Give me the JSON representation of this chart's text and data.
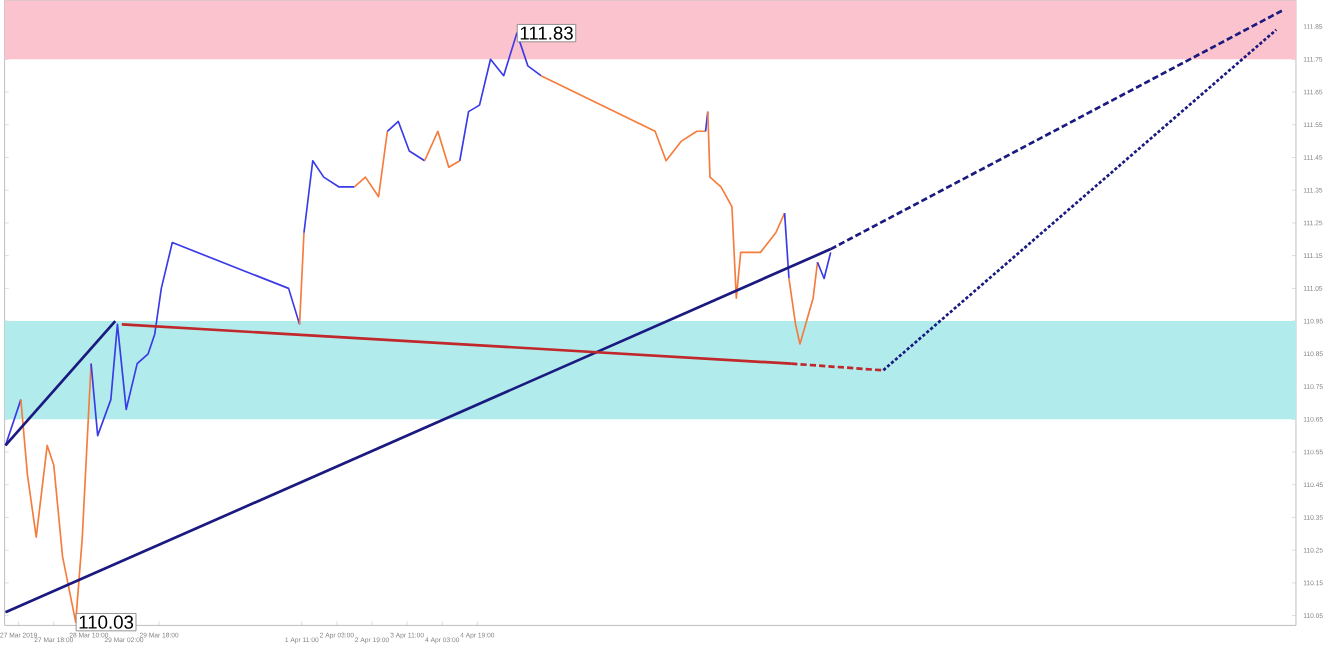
{
  "chart_data": {
    "type": "line",
    "xlim": [
      "2019-03-26T19:36",
      "2019-04-20T08:00"
    ],
    "ylim": [
      110.02,
      111.93
    ],
    "xticks": [
      {
        "value": "2019-03-27T02:00",
        "label": "27 Mar 2019"
      },
      {
        "value": "2019-03-27T18:00",
        "label": "27 Mar 18:00"
      },
      {
        "value": "2019-03-28T10:00",
        "label": "28 Mar 10:00"
      },
      {
        "value": "2019-03-29T02:00",
        "label": "29 Mar 02:00"
      },
      {
        "value": "2019-03-29T18:00",
        "label": "29 Mar 18:00"
      },
      {
        "value": "2019-04-01T11:00",
        "label": "1 Apr 11:00"
      },
      {
        "value": "2019-04-02T03:00",
        "label": "2 Apr 03:00"
      },
      {
        "value": "2019-04-02T19:00",
        "label": "2 Apr 19:00"
      },
      {
        "value": "2019-04-03T11:00",
        "label": "3 Apr 11:00"
      },
      {
        "value": "2019-04-04T03:00",
        "label": "4 Apr 03:00"
      },
      {
        "value": "2019-04-04T19:00",
        "label": "4 Apr 19:00"
      }
    ],
    "yticks": [
      110.05,
      110.15,
      110.25,
      110.35,
      110.45,
      110.55,
      110.65,
      110.75,
      110.85,
      110.95,
      111.05,
      111.15,
      111.25,
      111.35,
      111.45,
      111.55,
      111.65,
      111.75,
      111.85
    ],
    "bands": [
      {
        "axis": "y",
        "from": 111.75,
        "to": 111.93,
        "color": "#fbc3cd"
      },
      {
        "axis": "y",
        "from": 110.65,
        "to": 110.95,
        "color": "#b1ebeb"
      }
    ],
    "annotations": [
      {
        "text": "111.83",
        "x": "2019-04-05T13:00",
        "y": 111.83
      },
      {
        "text": "110.03",
        "x": "2019-03-28T04:00",
        "y": 110.03
      }
    ],
    "series": [
      {
        "color": "#3a3ae8",
        "x": [
          "2019-03-26T20:00",
          "2019-03-27T03:00"
        ],
        "values": [
          110.57,
          110.71
        ]
      },
      {
        "color": "#f57c3c",
        "x": [
          "2019-03-27T03:00",
          "2019-03-27T06:00",
          "2019-03-27T10:00",
          "2019-03-27T15:00",
          "2019-03-27T18:00",
          "2019-03-27T22:00",
          "2019-03-28T04:00",
          "2019-03-28T07:00",
          "2019-03-28T11:00"
        ],
        "values": [
          110.71,
          110.48,
          110.29,
          110.57,
          110.51,
          110.23,
          110.03,
          110.29,
          110.82
        ]
      },
      {
        "color": "#3a3ae8",
        "x": [
          "2019-03-28T11:00",
          "2019-03-28T14:00",
          "2019-03-28T20:00",
          "2019-03-28T23:00",
          "2019-03-29T03:00",
          "2019-03-29T08:00",
          "2019-03-29T13:00",
          "2019-03-29T16:00",
          "2019-03-29T19:00",
          "2019-03-30T00:00",
          "2019-04-01T05:00",
          "2019-04-01T10:00"
        ],
        "values": [
          110.82,
          110.6,
          110.71,
          110.94,
          110.68,
          110.82,
          110.85,
          110.91,
          111.05,
          111.19,
          111.05,
          110.94
        ]
      },
      {
        "color": "#f57c3c",
        "x": [
          "2019-04-01T10:00",
          "2019-04-01T12:00"
        ],
        "values": [
          110.94,
          111.22
        ]
      },
      {
        "color": "#3a3ae8",
        "x": [
          "2019-04-01T12:00",
          "2019-04-01T16:00",
          "2019-04-01T21:00",
          "2019-04-02T04:00",
          "2019-04-02T11:00"
        ],
        "values": [
          111.22,
          111.44,
          111.39,
          111.36,
          111.36
        ]
      },
      {
        "color": "#f57c3c",
        "x": [
          "2019-04-02T11:00",
          "2019-04-02T16:00",
          "2019-04-02T22:00",
          "2019-04-03T02:00"
        ],
        "values": [
          111.36,
          111.39,
          111.33,
          111.53
        ]
      },
      {
        "color": "#3a3ae8",
        "x": [
          "2019-04-03T02:00",
          "2019-04-03T07:00",
          "2019-04-03T12:00",
          "2019-04-03T19:00"
        ],
        "values": [
          111.53,
          111.56,
          111.47,
          111.44
        ]
      },
      {
        "color": "#f57c3c",
        "x": [
          "2019-04-03T19:00",
          "2019-04-04T01:00",
          "2019-04-04T06:00",
          "2019-04-04T11:00"
        ],
        "values": [
          111.44,
          111.53,
          111.42,
          111.44
        ]
      },
      {
        "color": "#3a3ae8",
        "x": [
          "2019-04-04T11:00",
          "2019-04-04T15:00",
          "2019-04-04T20:00",
          "2019-04-05T01:00",
          "2019-04-05T07:00",
          "2019-04-05T13:00",
          "2019-04-05T18:00",
          "2019-04-06T00:00"
        ],
        "values": [
          111.44,
          111.59,
          111.61,
          111.75,
          111.7,
          111.83,
          111.73,
          111.7
        ]
      },
      {
        "color": "#f57c3c",
        "x": [
          "2019-04-06T00:00",
          "2019-04-08T04:00",
          "2019-04-08T09:00",
          "2019-04-08T16:00",
          "2019-04-08T23:00",
          "2019-04-09T03:00"
        ],
        "values": [
          111.7,
          111.53,
          111.44,
          111.5,
          111.53,
          111.53
        ]
      },
      {
        "color": "#3a3ae8",
        "x": [
          "2019-04-09T03:00",
          "2019-04-09T04:00"
        ],
        "values": [
          111.53,
          111.59
        ]
      },
      {
        "color": "#f57c3c",
        "x": [
          "2019-04-09T04:00",
          "2019-04-09T05:00",
          "2019-04-09T10:00",
          "2019-04-09T15:00",
          "2019-04-09T17:00",
          "2019-04-09T19:00",
          "2019-04-10T04:00",
          "2019-04-10T11:00",
          "2019-04-10T15:00"
        ],
        "values": [
          111.59,
          111.39,
          111.36,
          111.3,
          111.02,
          111.16,
          111.16,
          111.22,
          111.28
        ]
      },
      {
        "color": "#3a3ae8",
        "x": [
          "2019-04-10T15:00",
          "2019-04-10T17:00"
        ],
        "values": [
          111.28,
          111.08
        ]
      },
      {
        "color": "#f57c3c",
        "x": [
          "2019-04-10T17:00",
          "2019-04-10T20:00",
          "2019-04-10T22:00",
          "2019-04-11T04:00",
          "2019-04-11T06:00"
        ],
        "values": [
          111.08,
          110.94,
          110.88,
          111.02,
          111.13
        ]
      },
      {
        "color": "#3a3ae8",
        "x": [
          "2019-04-11T06:00",
          "2019-04-11T09:00",
          "2019-04-11T12:00"
        ],
        "values": [
          111.13,
          111.08,
          111.16
        ]
      },
      {
        "color": "#1a1a80",
        "line_style": "solid",
        "x": [
          "2019-03-26T20:00",
          "2019-04-11T12:00"
        ],
        "values": [
          110.06,
          111.17
        ]
      },
      {
        "color": "#1a1a80",
        "line_style": "dashed",
        "x": [
          "2019-04-11T12:00",
          "2019-04-20T02:00"
        ],
        "values": [
          111.17,
          111.9
        ]
      },
      {
        "color": "#1a1a80",
        "line_style": "solid",
        "x": [
          "2019-03-26T20:00",
          "2019-03-28T22:00"
        ],
        "values": [
          110.57,
          110.95
        ]
      },
      {
        "color": "#c0282c",
        "line_style": "solid",
        "x": [
          "2019-03-29T01:00",
          "2019-04-10T18:00"
        ],
        "values": [
          110.94,
          110.82
        ]
      },
      {
        "color": "#c0282c",
        "line_style": "dashed",
        "x": [
          "2019-04-10T18:00",
          "2019-04-12T11:00"
        ],
        "values": [
          110.82,
          110.8
        ]
      },
      {
        "color": "#1a1a80",
        "line_style": "dotted",
        "x": [
          "2019-04-12T12:00",
          "2019-04-19T23:00"
        ],
        "values": [
          110.8,
          111.84
        ]
      }
    ]
  }
}
